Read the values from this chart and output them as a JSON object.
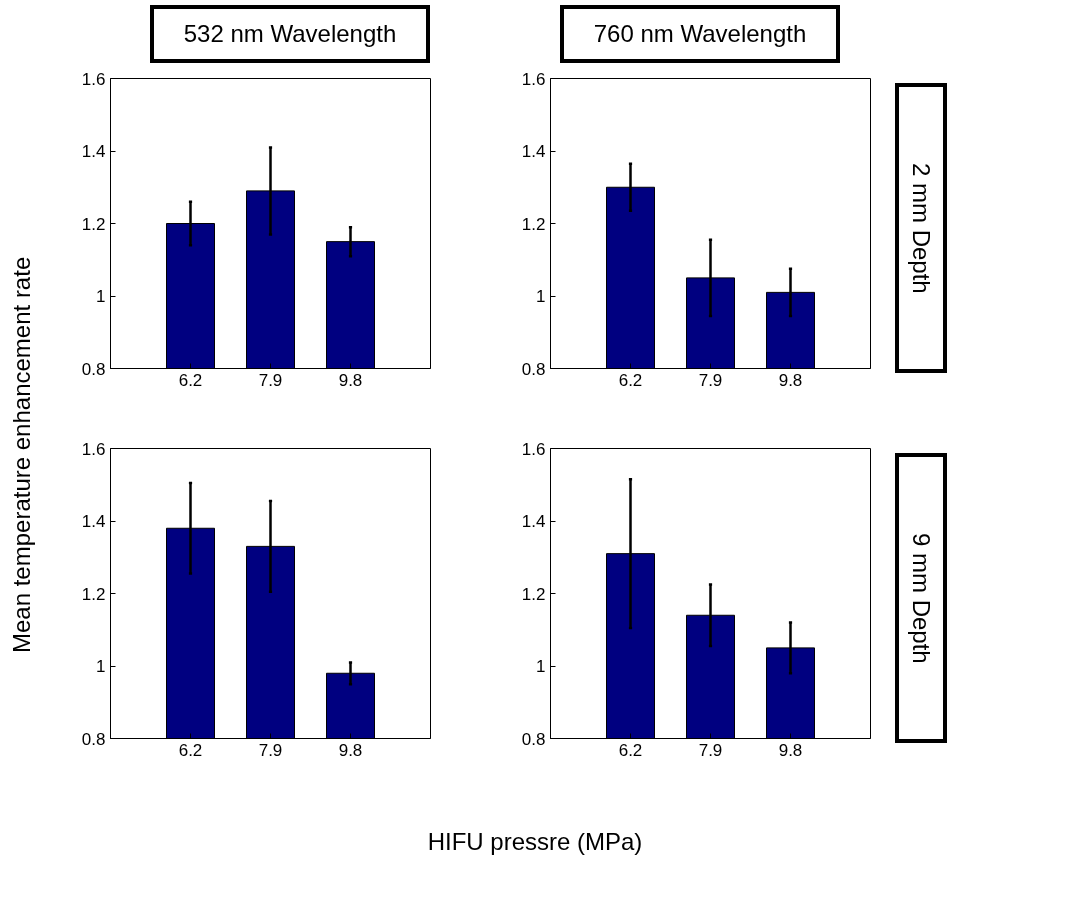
{
  "chart_data": [
    {
      "type": "bar",
      "title": "532 nm Wavelength",
      "ylabel": "Mean temperature enhancement rate",
      "xlabel": "HIFU pressre (MPa)",
      "categories": [
        "6.2",
        "7.9",
        "9.8"
      ],
      "values": [
        1.2,
        1.29,
        1.15
      ],
      "errors": [
        0.06,
        0.12,
        0.04
      ],
      "color": "#000080",
      "ylim": [
        0.8,
        1.6
      ],
      "yticks": [
        0.8,
        1,
        1.2,
        1.4,
        1.6
      ],
      "grid": false
    },
    {
      "type": "bar",
      "title": "760 nm Wavelength",
      "annotations": [
        "2 mm Depth"
      ],
      "categories": [
        "6.2",
        "7.9",
        "9.8"
      ],
      "values": [
        1.3,
        1.05,
        1.01
      ],
      "errors": [
        0.065,
        0.105,
        0.065
      ],
      "color": "#000080",
      "ylim": [
        0.8,
        1.6
      ],
      "yticks": [
        0.8,
        1,
        1.2,
        1.4,
        1.6
      ],
      "grid": false
    },
    {
      "type": "bar",
      "categories": [
        "6.2",
        "7.9",
        "9.8"
      ],
      "values": [
        1.38,
        1.33,
        0.98
      ],
      "errors": [
        0.125,
        0.125,
        0.03
      ],
      "color": "#000080",
      "ylim": [
        0.8,
        1.6
      ],
      "yticks": [
        0.8,
        1,
        1.2,
        1.4,
        1.6
      ],
      "grid": false
    },
    {
      "type": "bar",
      "annotations": [
        "9 mm Depth"
      ],
      "categories": [
        "6.2",
        "7.9",
        "9.8"
      ],
      "values": [
        1.31,
        1.14,
        1.05
      ],
      "errors": [
        0.205,
        0.085,
        0.07
      ],
      "color": "#000080",
      "ylim": [
        0.8,
        1.6
      ],
      "yticks": [
        0.8,
        1,
        1.2,
        1.4,
        1.6
      ],
      "grid": false
    }
  ]
}
